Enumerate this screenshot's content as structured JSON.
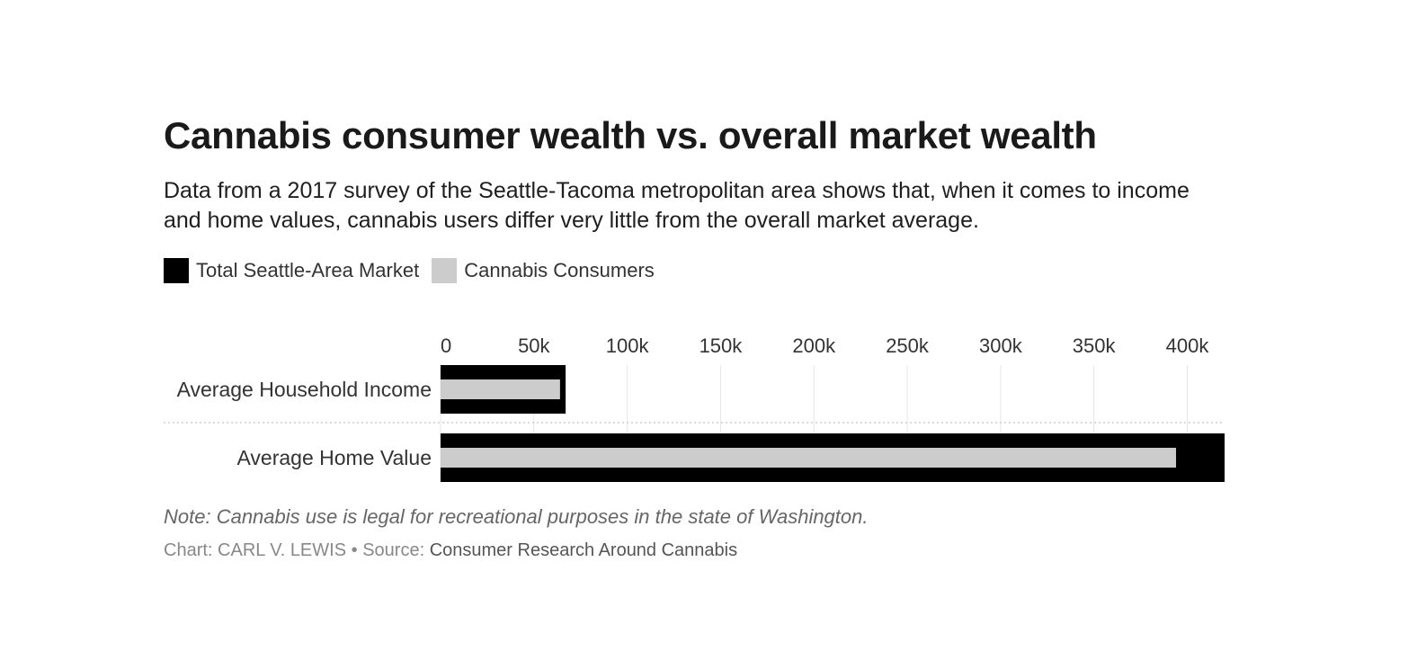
{
  "header": {
    "title": "Cannabis consumer wealth vs. overall market wealth",
    "subtitle": "Data from a 2017 survey of the Seattle-Tacoma metropolitan area shows that, when it comes to income and home values, cannabis users differ very little from the overall market average."
  },
  "footer": {
    "note": "Note: Cannabis use is legal for recreational purposes in the state of Washington.",
    "chart_prefix": "Chart:",
    "chart_author": "CARL V. LEWIS",
    "separator": "•",
    "source_prefix": "Source:",
    "source_name": "Consumer Research Around Cannabis"
  },
  "chart_data": {
    "type": "bar",
    "orientation": "horizontal",
    "layout": "overlapping",
    "title": "Cannabis consumer wealth vs. overall market wealth",
    "categories": [
      "Average Household Income",
      "Average Home Value"
    ],
    "series": [
      {
        "name": "Total Seattle-Area Market",
        "values": [
          67000,
          420000
        ],
        "color": "#000000"
      },
      {
        "name": "Cannabis Consumers",
        "values": [
          64000,
          394000
        ],
        "color": "#cccccc"
      }
    ],
    "xlim": [
      0,
      420000
    ],
    "x_ticks": [
      0,
      50000,
      100000,
      150000,
      200000,
      250000,
      300000,
      350000,
      400000
    ],
    "x_tick_labels": [
      "0",
      "50k",
      "100k",
      "150k",
      "200k",
      "250k",
      "300k",
      "350k",
      "400k"
    ],
    "grid": true,
    "legend_position": "top-left",
    "xlabel": "",
    "ylabel": ""
  }
}
